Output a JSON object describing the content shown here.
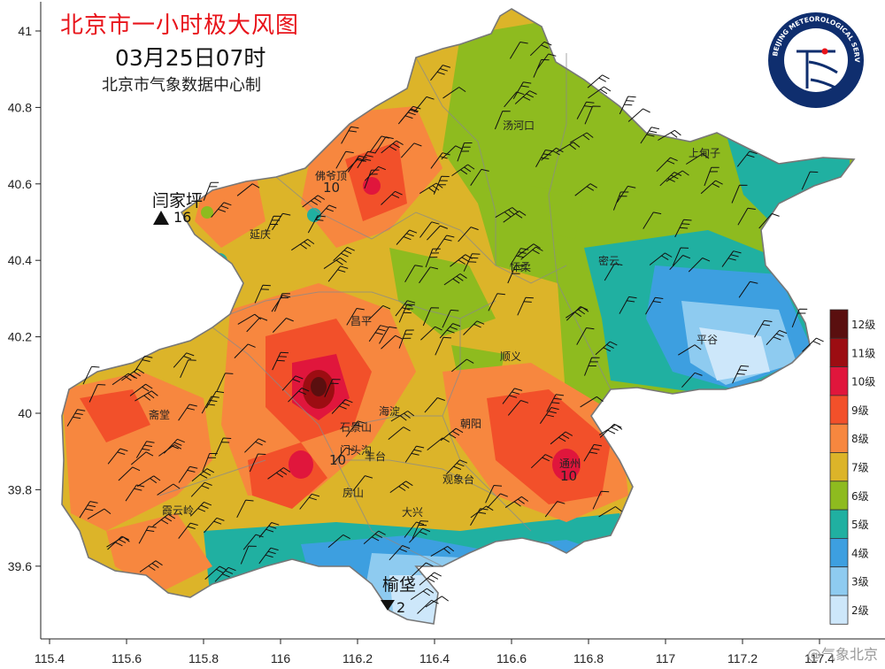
{
  "title": "北京市一小时极大风图",
  "time": "03月25日07时",
  "source": "北京市气象数据中心制",
  "logo_text": "BEIJING METEOROLOGICAL SERVICE · 北京市气象局",
  "watermark": "@气象北京",
  "x_ticks": [
    "115.4",
    "115.6",
    "115.8",
    "116",
    "116.2",
    "116.4",
    "116.6",
    "116.8",
    "117",
    "117.2",
    "117.4"
  ],
  "y_ticks": [
    "41",
    "40.8",
    "40.6",
    "40.4",
    "40.2",
    "40",
    "39.8",
    "39.6"
  ],
  "legend": [
    {
      "label": "12级",
      "color": "#5a0f0f"
    },
    {
      "label": "11级",
      "color": "#9c0d12"
    },
    {
      "label": "10级",
      "color": "#e0163c"
    },
    {
      "label": "9级",
      "color": "#f2502a"
    },
    {
      "label": "8级",
      "color": "#f7873f"
    },
    {
      "label": "7级",
      "color": "#dcb429"
    },
    {
      "label": "6级",
      "color": "#8ebb1f"
    },
    {
      "label": "5级",
      "color": "#20b0a1"
    },
    {
      "label": "4级",
      "color": "#3d9fe0"
    },
    {
      "label": "3级",
      "color": "#8ecbf0"
    },
    {
      "label": "2级",
      "color": "#cde7fa"
    }
  ],
  "places": [
    {
      "name": "汤河口"
    },
    {
      "name": "上甸子"
    },
    {
      "name": "佛爷顶"
    },
    {
      "name": "延庆"
    },
    {
      "name": "怀柔"
    },
    {
      "name": "密云"
    },
    {
      "name": "昌平"
    },
    {
      "name": "平谷"
    },
    {
      "name": "顺义"
    },
    {
      "name": "海淀"
    },
    {
      "name": "朝阳"
    },
    {
      "name": "石景山"
    },
    {
      "name": "门头沟"
    },
    {
      "name": "丰台"
    },
    {
      "name": "斋堂"
    },
    {
      "name": "霞云岭"
    },
    {
      "name": "房山"
    },
    {
      "name": "观象台"
    },
    {
      "name": "大兴"
    },
    {
      "name": "通州"
    }
  ],
  "station_values": [
    "10",
    "10",
    "10"
  ],
  "extremes": {
    "max": {
      "name": "闫家坪",
      "value": "16"
    },
    "min": {
      "name": "榆垡",
      "value": "2"
    }
  }
}
